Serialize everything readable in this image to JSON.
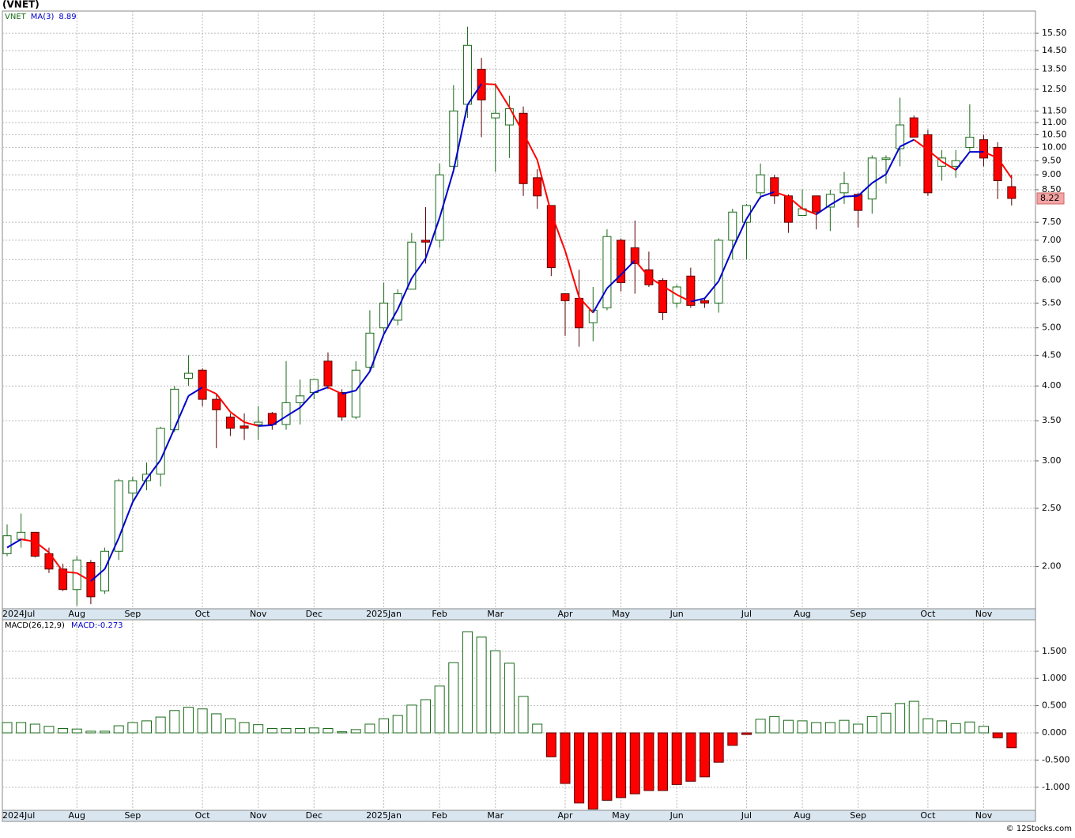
{
  "chart_data": [
    {
      "type": "candlestick",
      "title": "(VNET)",
      "ticker": "VNET",
      "log_scale": true,
      "grid": true,
      "categories": [
        "2024Jul",
        null,
        null,
        null,
        null,
        "Aug",
        null,
        null,
        null,
        "Sep",
        null,
        null,
        null,
        null,
        "Oct",
        null,
        null,
        null,
        "Nov",
        null,
        null,
        null,
        "Dec",
        null,
        null,
        null,
        null,
        "2025Jan",
        null,
        null,
        null,
        "Feb",
        null,
        null,
        null,
        "Mar",
        null,
        null,
        null,
        null,
        "Apr",
        null,
        null,
        null,
        "May",
        null,
        null,
        null,
        "Jun",
        null,
        null,
        null,
        null,
        "Jul",
        null,
        null,
        null,
        "Aug",
        null,
        null,
        null,
        "Sep",
        null,
        null,
        null,
        null,
        "Oct",
        null,
        null,
        null,
        "Nov",
        null,
        null
      ],
      "open": [
        2.1,
        2.22,
        2.28,
        2.1,
        1.98,
        1.83,
        2.03,
        1.82,
        2.12,
        2.65,
        2.78,
        2.85,
        3.38,
        4.12,
        4.25,
        3.8,
        3.55,
        3.43,
        3.45,
        3.6,
        3.45,
        3.75,
        3.9,
        4.4,
        3.9,
        3.55,
        4.3,
        5.0,
        5.15,
        5.8,
        7.0,
        7.0,
        9.3,
        11.8,
        13.5,
        11.2,
        10.9,
        11.4,
        8.9,
        8.0,
        5.7,
        5.6,
        5.1,
        5.4,
        7.0,
        6.8,
        6.25,
        6.0,
        5.5,
        6.1,
        5.55,
        5.5,
        7.0,
        7.5,
        8.4,
        8.9,
        8.3,
        7.7,
        8.3,
        7.95,
        8.4,
        8.35,
        8.2,
        9.55,
        9.95,
        11.2,
        10.5,
        9.3,
        9.3,
        10.0,
        10.3,
        10.0,
        8.6
      ],
      "high": [
        2.35,
        2.45,
        2.28,
        2.15,
        2.02,
        2.08,
        2.05,
        2.15,
        2.8,
        2.82,
        2.98,
        3.42,
        4.0,
        4.5,
        4.28,
        3.88,
        3.6,
        3.6,
        3.7,
        3.62,
        4.4,
        4.1,
        4.1,
        4.55,
        3.95,
        4.4,
        5.35,
        5.95,
        5.8,
        7.2,
        7.95,
        9.4,
        12.7,
        15.9,
        14.1,
        12.8,
        12.2,
        11.7,
        9.2,
        8.0,
        5.7,
        6.25,
        5.85,
        7.3,
        7.05,
        7.55,
        6.7,
        6.05,
        5.9,
        6.3,
        5.6,
        7.05,
        7.9,
        8.05,
        9.4,
        9.0,
        8.35,
        8.5,
        8.3,
        8.5,
        9.1,
        8.4,
        9.7,
        9.7,
        12.1,
        11.3,
        10.7,
        9.9,
        9.9,
        11.8,
        10.5,
        10.2,
        9.0
      ],
      "low": [
        2.08,
        2.15,
        2.07,
        1.95,
        1.82,
        1.72,
        1.73,
        1.8,
        2.05,
        2.55,
        2.68,
        2.72,
        3.35,
        4.0,
        3.7,
        3.15,
        3.3,
        3.25,
        3.25,
        3.38,
        3.38,
        3.45,
        3.8,
        3.95,
        3.5,
        3.52,
        4.25,
        4.9,
        5.05,
        5.8,
        6.4,
        6.8,
        9.2,
        11.2,
        10.4,
        9.1,
        9.6,
        8.3,
        7.9,
        6.1,
        4.85,
        4.65,
        4.75,
        5.35,
        5.75,
        5.7,
        5.85,
        5.15,
        5.4,
        5.4,
        5.4,
        5.3,
        6.5,
        6.5,
        8.2,
        8.05,
        7.2,
        7.7,
        7.3,
        7.25,
        8.05,
        7.35,
        7.75,
        8.7,
        9.3,
        10.4,
        8.3,
        8.8,
        8.9,
        9.8,
        9.3,
        8.2,
        8.0
      ],
      "close": [
        2.25,
        2.28,
        2.08,
        1.98,
        1.83,
        2.05,
        1.78,
        2.12,
        2.78,
        2.78,
        2.85,
        3.4,
        3.95,
        4.2,
        3.8,
        3.65,
        3.4,
        3.4,
        3.48,
        3.45,
        3.75,
        3.85,
        4.1,
        4.0,
        3.55,
        4.25,
        4.9,
        5.5,
        5.7,
        6.95,
        6.95,
        9.0,
        11.5,
        14.8,
        12.0,
        11.4,
        11.6,
        8.7,
        8.3,
        6.3,
        5.55,
        5.0,
        5.35,
        7.1,
        5.95,
        6.4,
        5.9,
        5.3,
        5.85,
        5.45,
        5.5,
        7.0,
        7.8,
        8.0,
        9.0,
        8.3,
        7.5,
        7.9,
        7.8,
        8.35,
        8.7,
        7.85,
        9.6,
        9.6,
        10.9,
        10.4,
        8.4,
        9.6,
        9.5,
        10.4,
        9.6,
        8.8,
        8.22
      ],
      "up_color": "#1a6b1a",
      "down_color": "#ff0000",
      "ma": {
        "name": "MA(3)",
        "up_color": "#0000cc",
        "down_color": "#ff0000",
        "values": [
          2.15,
          2.22,
          2.2,
          2.11,
          1.96,
          1.95,
          1.89,
          1.98,
          2.23,
          2.56,
          2.8,
          3.01,
          3.4,
          3.85,
          3.98,
          3.88,
          3.62,
          3.48,
          3.43,
          3.44,
          3.56,
          3.68,
          3.9,
          3.98,
          3.88,
          3.93,
          4.23,
          4.88,
          5.37,
          6.05,
          6.53,
          7.63,
          9.15,
          11.77,
          12.77,
          12.73,
          11.67,
          10.57,
          9.53,
          7.77,
          6.72,
          5.62,
          5.3,
          5.82,
          6.13,
          6.48,
          6.08,
          5.87,
          5.68,
          5.53,
          5.6,
          5.98,
          6.77,
          7.6,
          8.27,
          8.43,
          8.27,
          7.9,
          7.73,
          8.02,
          8.28,
          8.3,
          8.72,
          9.02,
          10.03,
          10.3,
          9.9,
          9.47,
          9.17,
          9.83,
          9.83,
          9.6,
          8.89
        ]
      },
      "ylim": [
        1.7,
        16.88
      ],
      "yticks": [
        {
          "value": 2,
          "label": "2.00"
        },
        {
          "value": 2.5,
          "label": "2.50"
        },
        {
          "value": 3,
          "label": "3.00"
        },
        {
          "value": 3.5,
          "label": "3.50"
        },
        {
          "value": 4,
          "label": "4.00"
        },
        {
          "value": 4.5,
          "label": "4.50"
        },
        {
          "value": 5,
          "label": "5.00"
        },
        {
          "value": 5.5,
          "label": "5.50"
        },
        {
          "value": 6,
          "label": "6.00"
        },
        {
          "value": 6.5,
          "label": "6.50"
        },
        {
          "value": 7,
          "label": "7.00"
        },
        {
          "value": 7.5,
          "label": "7.50"
        },
        {
          "value": 8.5,
          "label": "8.50"
        },
        {
          "value": 9,
          "label": "9.00"
        },
        {
          "value": 9.5,
          "label": "9.50"
        },
        {
          "value": 10,
          "label": "10.00"
        },
        {
          "value": 10.5,
          "label": "10.50"
        },
        {
          "value": 11,
          "label": "11.00"
        },
        {
          "value": 11.5,
          "label": "11.50"
        },
        {
          "value": 12.5,
          "label": "12.50"
        },
        {
          "value": 13.5,
          "label": "13.50"
        },
        {
          "value": 14.5,
          "label": "14.50"
        },
        {
          "value": 15.5,
          "label": "15.50"
        }
      ]
    },
    {
      "type": "bar",
      "name": "MACD(26,12,9)",
      "label": "MACD:",
      "grid": true,
      "up_color": "#1a6b1a",
      "down_color": "#ff0000",
      "values": [
        0.19,
        0.19,
        0.16,
        0.12,
        0.08,
        0.07,
        0.03,
        0.03,
        0.13,
        0.19,
        0.22,
        0.29,
        0.41,
        0.47,
        0.44,
        0.35,
        0.26,
        0.19,
        0.15,
        0.08,
        0.08,
        0.08,
        0.09,
        0.08,
        0.02,
        0.06,
        0.16,
        0.26,
        0.32,
        0.51,
        0.61,
        0.86,
        1.29,
        1.86,
        1.76,
        1.51,
        1.28,
        0.67,
        0.16,
        -0.44,
        -0.93,
        -1.29,
        -1.4,
        -1.24,
        -1.19,
        -1.12,
        -1.06,
        -1.06,
        -0.95,
        -0.89,
        -0.81,
        -0.54,
        -0.23,
        -0.03,
        0.25,
        0.3,
        0.23,
        0.22,
        0.19,
        0.19,
        0.23,
        0.16,
        0.3,
        0.36,
        0.54,
        0.58,
        0.26,
        0.22,
        0.17,
        0.2,
        0.12,
        -0.09,
        -0.273
      ],
      "ylim": [
        -1.424,
        2.078
      ],
      "yticks": [
        {
          "value": -1,
          "label": "-1.000"
        },
        {
          "value": -0.5,
          "label": "-0.500"
        },
        {
          "value": 0,
          "label": "0.000"
        },
        {
          "value": 0.5,
          "label": "0.500"
        },
        {
          "value": 1,
          "label": "1.000"
        },
        {
          "value": 1.5,
          "label": "1.500"
        }
      ]
    }
  ],
  "footer": "© 12Stocks.com"
}
